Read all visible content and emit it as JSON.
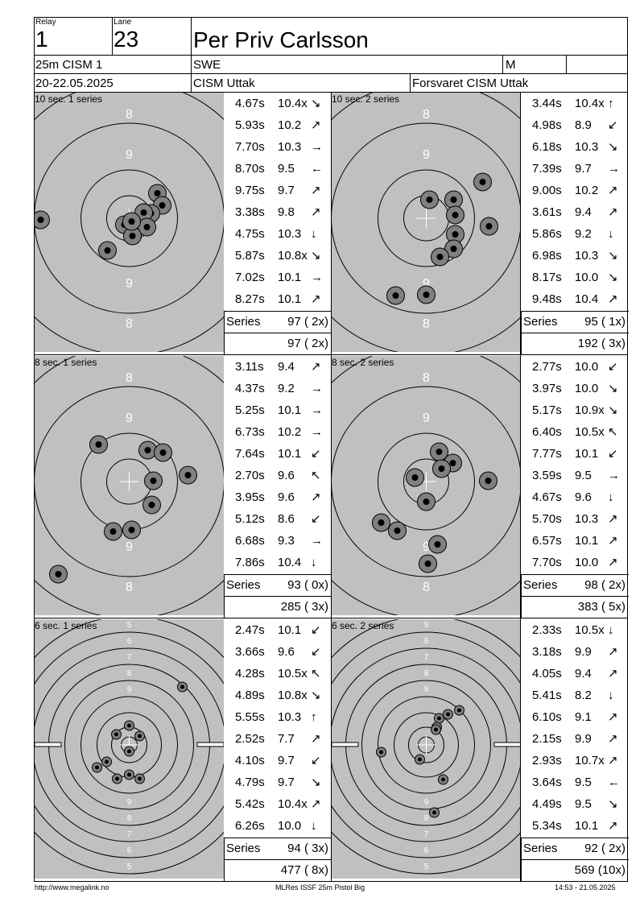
{
  "header": {
    "relay_label": "Relay",
    "relay_value": "1",
    "lane_label": "Lane",
    "lane_value": "23",
    "name": "Per Priv Carlsson",
    "event": "25m CISM 1",
    "nation": "SWE",
    "gender": "M",
    "dates": "20-22.05.2025",
    "competition": "CISM Uttak",
    "club": "Forsvaret CISM Uttak"
  },
  "panels": [
    {
      "title": "10 sec. 1 series",
      "target_type": "precision",
      "series_label": "Series",
      "series_total": "97 ( 2x)",
      "cumulative": "97 ( 2x)",
      "shots": [
        {
          "time": "4.67s",
          "score": "10.4x",
          "dir": "↘"
        },
        {
          "time": "5.93s",
          "score": "10.2",
          "dir": "↗"
        },
        {
          "time": "7.70s",
          "score": "10.3",
          "dir": "→"
        },
        {
          "time": "8.70s",
          "score": "9.5",
          "dir": "←"
        },
        {
          "time": "9.75s",
          "score": "9.7",
          "dir": "↗"
        },
        {
          "time": "3.38s",
          "score": "9.8",
          "dir": "↗"
        },
        {
          "time": "4.75s",
          "score": "10.3",
          "dir": "↓"
        },
        {
          "time": "5.87s",
          "score": "10.8x",
          "dir": "↘"
        },
        {
          "time": "7.02s",
          "score": "10.1",
          "dir": "→"
        },
        {
          "time": "8.27s",
          "score": "10.1",
          "dir": "↗"
        }
      ]
    },
    {
      "title": "10 sec. 2 series",
      "target_type": "precision",
      "series_label": "Series",
      "series_total": "95 ( 1x)",
      "cumulative": "192 ( 3x)",
      "shots": [
        {
          "time": "3.44s",
          "score": "10.4x",
          "dir": "↑"
        },
        {
          "time": "4.98s",
          "score": "8.9",
          "dir": "↙"
        },
        {
          "time": "6.18s",
          "score": "10.3",
          "dir": "↘"
        },
        {
          "time": "7.39s",
          "score": "9.7",
          "dir": "→"
        },
        {
          "time": "9.00s",
          "score": "10.2",
          "dir": "↗"
        },
        {
          "time": "3.61s",
          "score": "9.4",
          "dir": "↗"
        },
        {
          "time": "5.86s",
          "score": "9.2",
          "dir": "↓"
        },
        {
          "time": "6.98s",
          "score": "10.3",
          "dir": "↘"
        },
        {
          "time": "8.17s",
          "score": "10.0",
          "dir": "↘"
        },
        {
          "time": "9.48s",
          "score": "10.4",
          "dir": "↗"
        }
      ]
    },
    {
      "title": "8 sec. 1 series",
      "target_type": "precision",
      "series_label": "Series",
      "series_total": "93 ( 0x)",
      "cumulative": "285 ( 3x)",
      "shots": [
        {
          "time": "3.11s",
          "score": "9.4",
          "dir": "↗"
        },
        {
          "time": "4.37s",
          "score": "9.2",
          "dir": "→"
        },
        {
          "time": "5.25s",
          "score": "10.1",
          "dir": "→"
        },
        {
          "time": "6.73s",
          "score": "10.2",
          "dir": "→"
        },
        {
          "time": "7.64s",
          "score": "10.1",
          "dir": "↙"
        },
        {
          "time": "2.70s",
          "score": "9.6",
          "dir": "↖"
        },
        {
          "time": "3.95s",
          "score": "9.6",
          "dir": "↗"
        },
        {
          "time": "5.12s",
          "score": "8.6",
          "dir": "↙"
        },
        {
          "time": "6.68s",
          "score": "9.3",
          "dir": "→"
        },
        {
          "time": "7.86s",
          "score": "10.4",
          "dir": "↓"
        }
      ]
    },
    {
      "title": "8 sec. 2 series",
      "target_type": "precision",
      "series_label": "Series",
      "series_total": "98 ( 2x)",
      "cumulative": "383 ( 5x)",
      "shots": [
        {
          "time": "2.77s",
          "score": "10.0",
          "dir": "↙"
        },
        {
          "time": "3.97s",
          "score": "10.0",
          "dir": "↘"
        },
        {
          "time": "5.17s",
          "score": "10.9x",
          "dir": "↘"
        },
        {
          "time": "6.40s",
          "score": "10.5x",
          "dir": "↖"
        },
        {
          "time": "7.77s",
          "score": "10.1",
          "dir": "↙"
        },
        {
          "time": "3.59s",
          "score": "9.5",
          "dir": "→"
        },
        {
          "time": "4.67s",
          "score": "9.6",
          "dir": "↓"
        },
        {
          "time": "5.70s",
          "score": "10.3",
          "dir": "↗"
        },
        {
          "time": "6.57s",
          "score": "10.1",
          "dir": "↗"
        },
        {
          "time": "7.70s",
          "score": "10.0",
          "dir": "↗"
        }
      ]
    },
    {
      "title": "6 sec. 1 series",
      "target_type": "rapid",
      "series_label": "Series",
      "series_total": "94 ( 3x)",
      "cumulative": "477 ( 8x)",
      "shots": [
        {
          "time": "2.47s",
          "score": "10.1",
          "dir": "↙"
        },
        {
          "time": "3.66s",
          "score": "9.6",
          "dir": "↙"
        },
        {
          "time": "4.28s",
          "score": "10.5x",
          "dir": "↖"
        },
        {
          "time": "4.89s",
          "score": "10.8x",
          "dir": "↘"
        },
        {
          "time": "5.55s",
          "score": "10.3",
          "dir": "↑"
        },
        {
          "time": "2.52s",
          "score": "7.7",
          "dir": "↗"
        },
        {
          "time": "4.10s",
          "score": "9.7",
          "dir": "↙"
        },
        {
          "time": "4.79s",
          "score": "9.7",
          "dir": "↘"
        },
        {
          "time": "5.42s",
          "score": "10.4x",
          "dir": "↗"
        },
        {
          "time": "6.26s",
          "score": "10.0",
          "dir": "↓"
        }
      ]
    },
    {
      "title": "6 sec. 2 series",
      "target_type": "rapid",
      "series_label": "Series",
      "series_total": "92 ( 2x)",
      "cumulative": "569 (10x)",
      "shots": [
        {
          "time": "2.33s",
          "score": "10.5x",
          "dir": "↓"
        },
        {
          "time": "3.18s",
          "score": "9.9",
          "dir": "↗"
        },
        {
          "time": "4.05s",
          "score": "9.4",
          "dir": "↗"
        },
        {
          "time": "5.41s",
          "score": "8.2",
          "dir": "↓"
        },
        {
          "time": "6.10s",
          "score": "9.1",
          "dir": "↗"
        },
        {
          "time": "2.15s",
          "score": "9.9",
          "dir": "↗"
        },
        {
          "time": "2.93s",
          "score": "10.7x",
          "dir": "↗"
        },
        {
          "time": "3.64s",
          "score": "9.5",
          "dir": "←"
        },
        {
          "time": "4.49s",
          "score": "9.5",
          "dir": "↘"
        },
        {
          "time": "5.34s",
          "score": "10.1",
          "dir": "↗"
        }
      ]
    }
  ],
  "footer": {
    "left": "http://www.megalink.no",
    "center": "MLRes ISSF 25m Pistol Big",
    "right": "14:53 - 21.05.2025"
  }
}
